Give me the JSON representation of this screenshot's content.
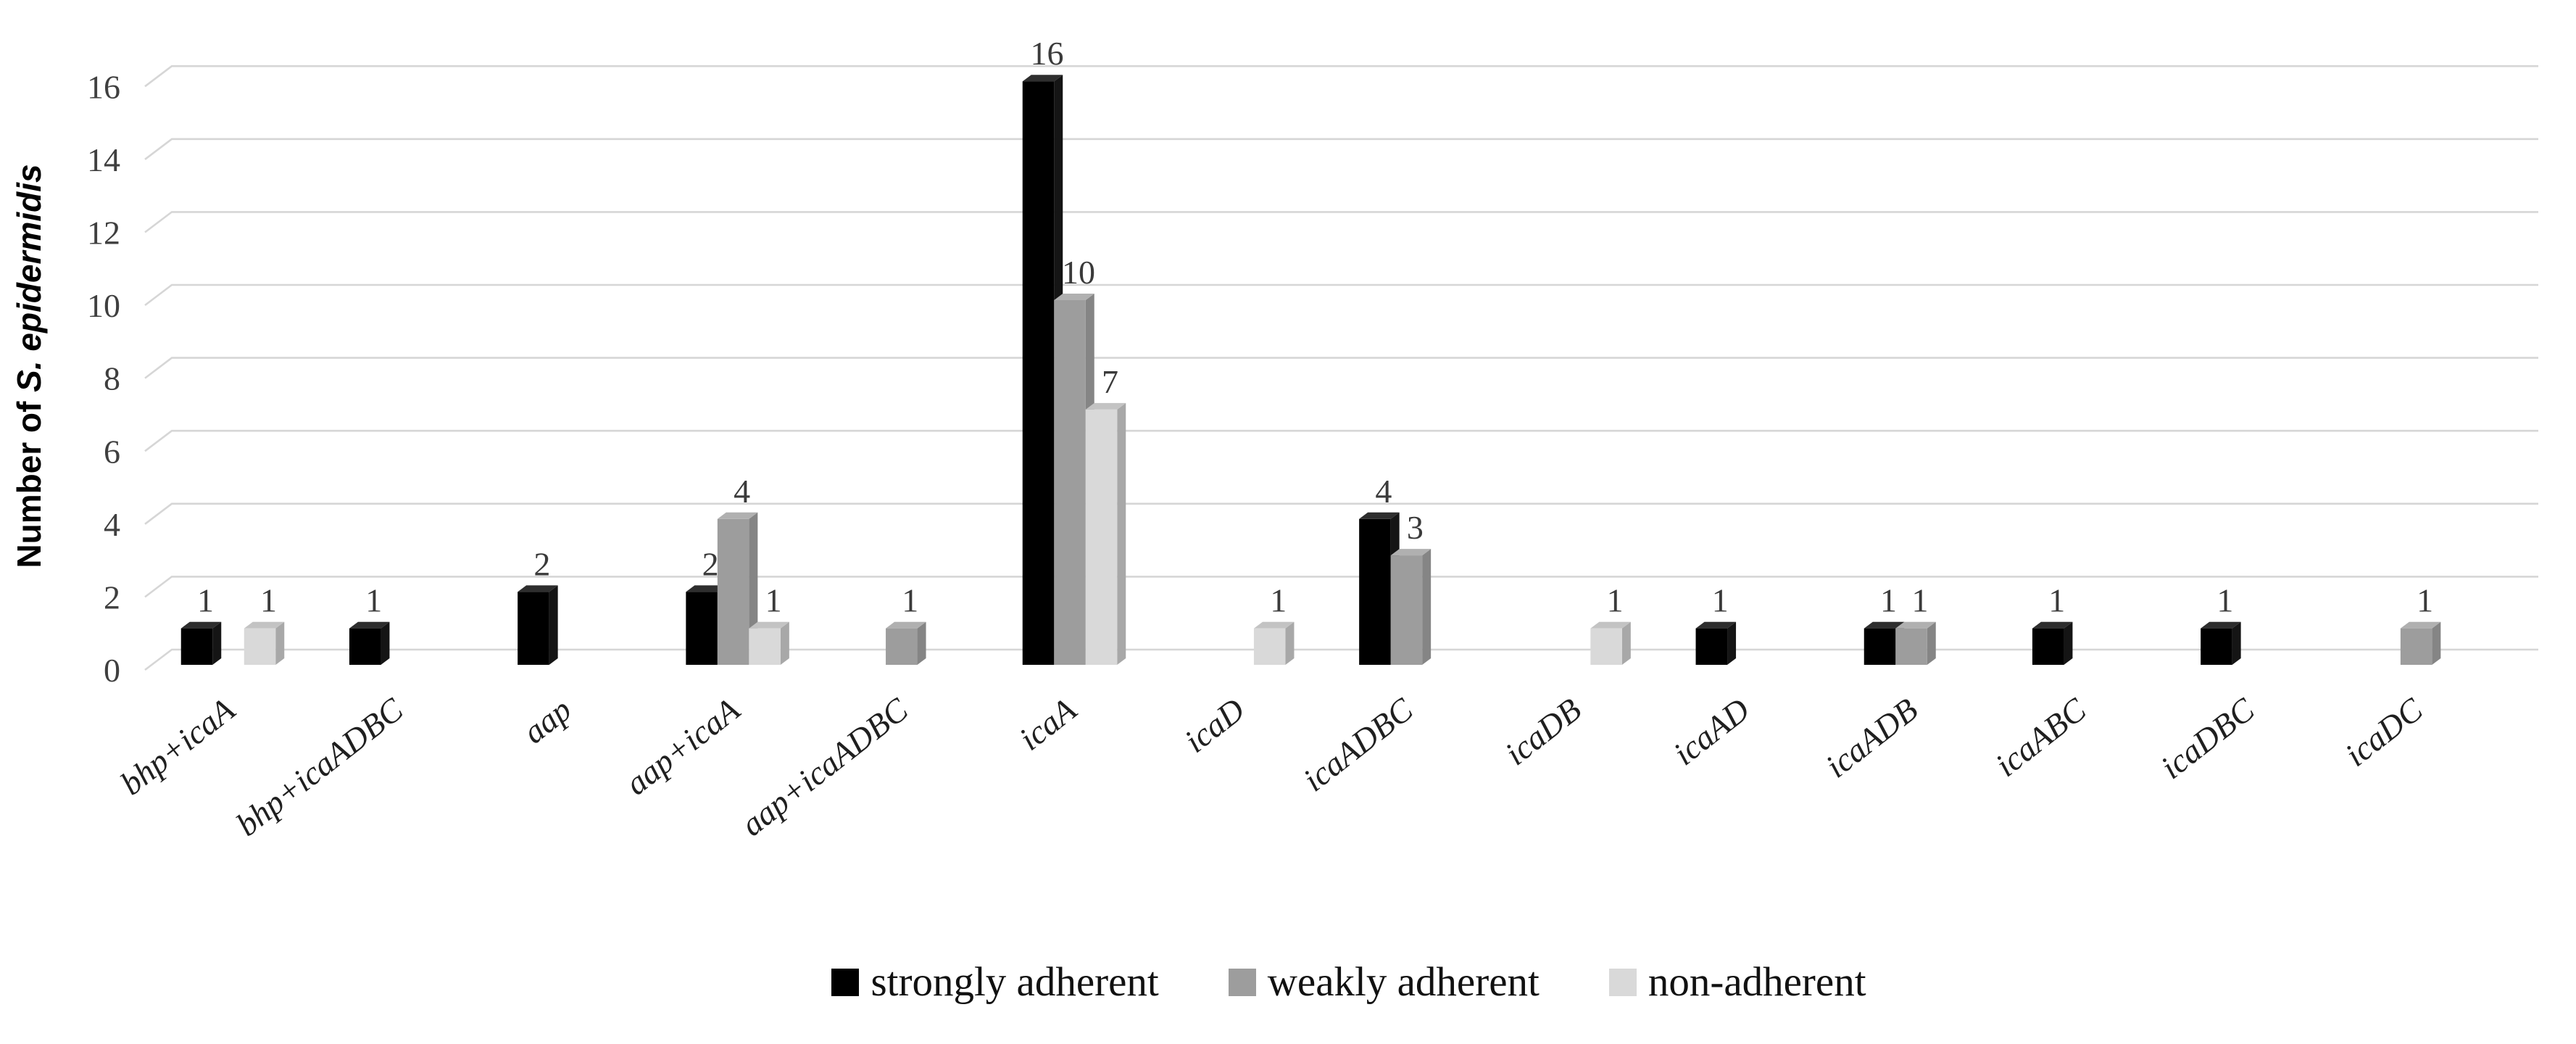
{
  "chart_data": {
    "type": "bar",
    "style": "3d-column",
    "title": "",
    "ylabel_prefix": "Number of ",
    "ylabel_italic": "S. epidermidis",
    "xlabel": "",
    "ylim": [
      0,
      16
    ],
    "yticks": [
      0,
      2,
      4,
      6,
      8,
      10,
      12,
      14,
      16
    ],
    "grid": true,
    "legend_position": "bottom",
    "categories": [
      "bhp+icaA",
      "bhp+icaADBC",
      "aap",
      "aap+icaA",
      "aap+icaADBC",
      "icaA",
      "icaD",
      "icaADBC",
      "icaDB",
      "icaAD",
      "icaADB",
      "icaABC",
      "icaDBC",
      "icaDC"
    ],
    "series": [
      {
        "name": "strongly adherent",
        "color": "#000000",
        "top_color": "#2e2e2e",
        "side_color": "#151515",
        "values": [
          1,
          1,
          2,
          2,
          0,
          16,
          0,
          4,
          0,
          1,
          1,
          1,
          1,
          0
        ]
      },
      {
        "name": "weakly adherent",
        "color": "#9d9d9d",
        "top_color": "#b0b0b0",
        "side_color": "#858585",
        "values": [
          0,
          0,
          0,
          4,
          1,
          10,
          0,
          3,
          0,
          0,
          1,
          0,
          0,
          1
        ]
      },
      {
        "name": "non-adherent",
        "color": "#d9d9d9",
        "top_color": "#c3c3c3",
        "side_color": "#a8a8a8",
        "values": [
          1,
          0,
          0,
          1,
          0,
          7,
          1,
          0,
          1,
          0,
          0,
          0,
          0,
          0
        ]
      }
    ],
    "colors": {
      "gridline": "#d6d6d6",
      "tick_label": "#3f3f3f",
      "value_label": "#3a3a3a",
      "category_label": "#1f1f1f",
      "axis_title": "#000000"
    }
  }
}
